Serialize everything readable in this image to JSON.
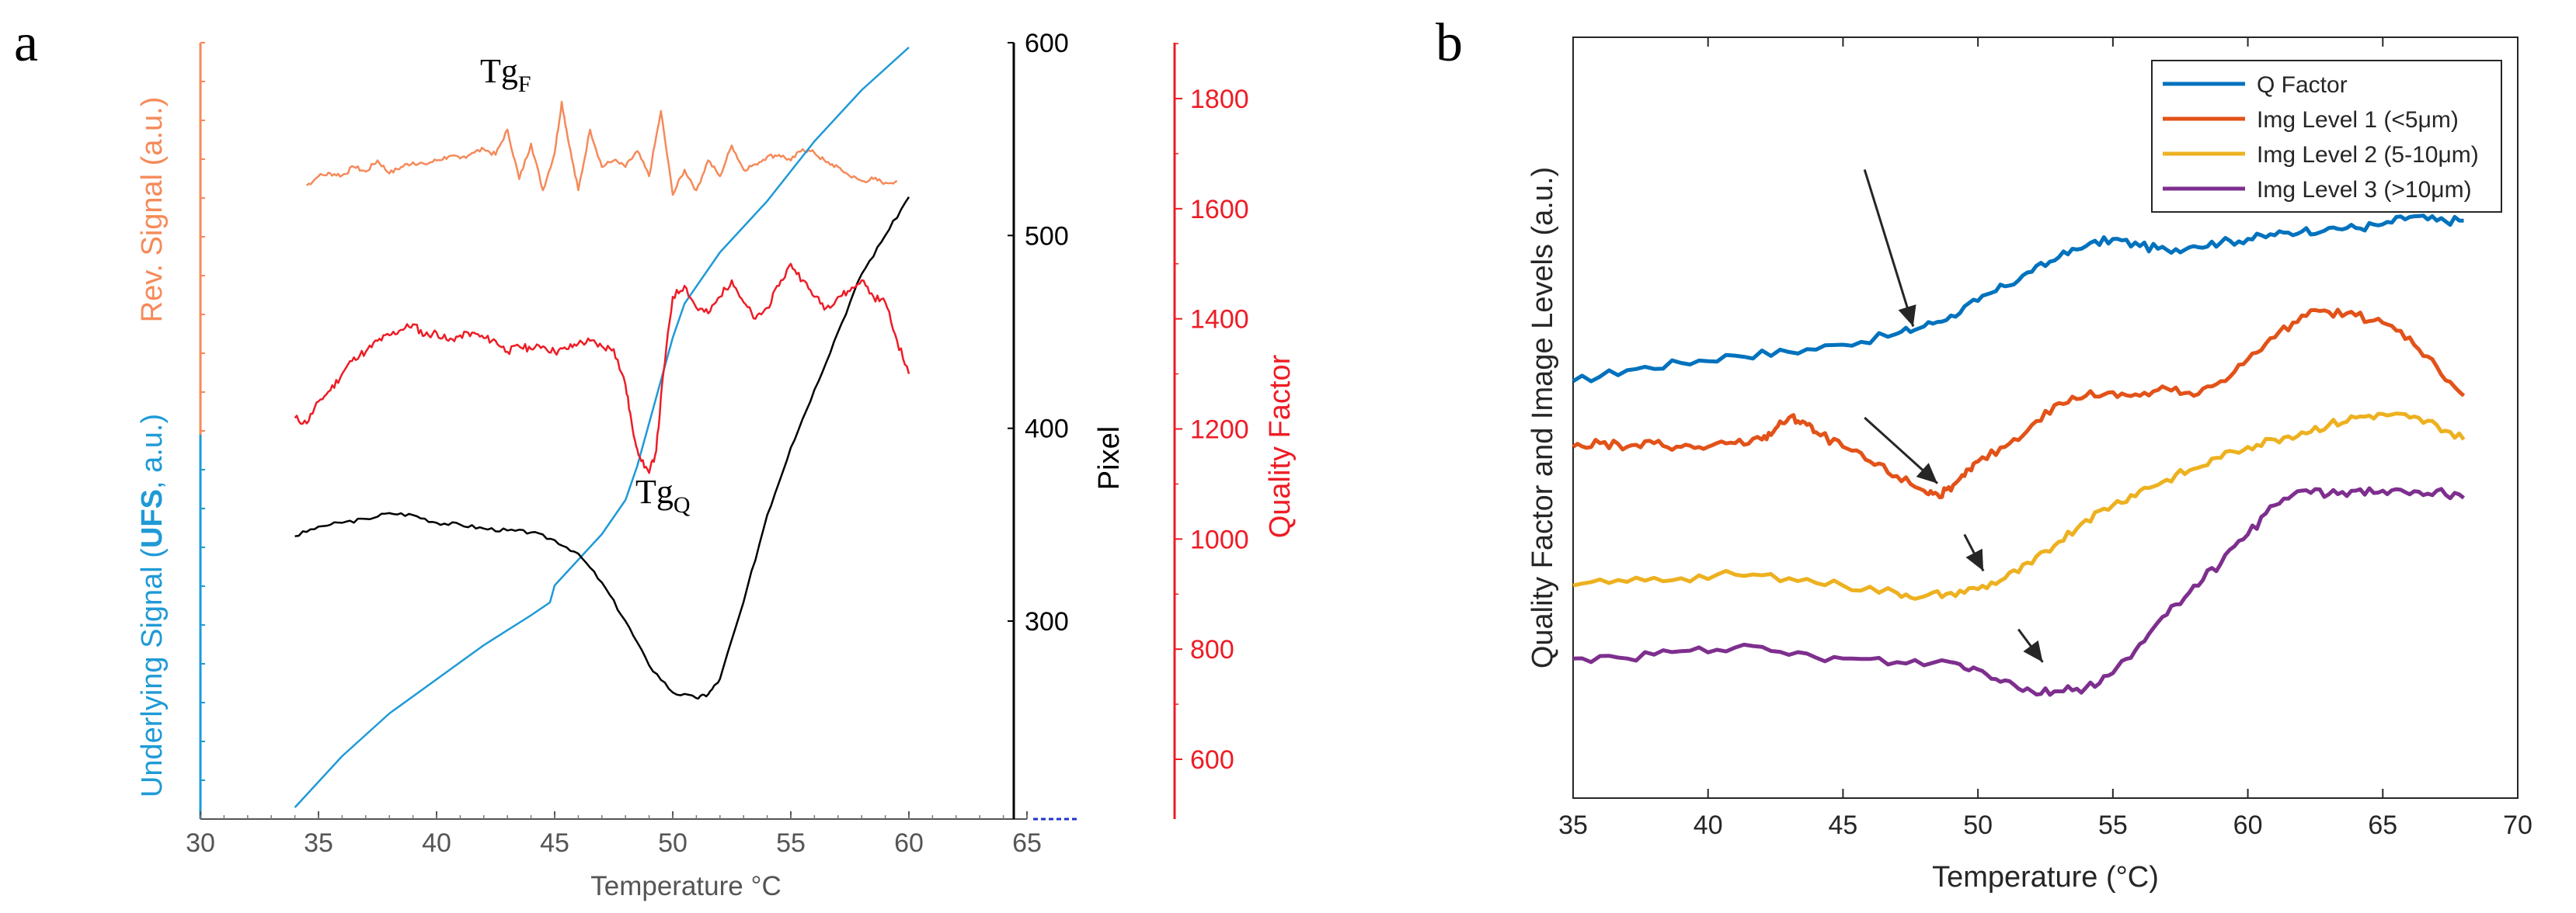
{
  "panels": [
    {
      "label": "a",
      "xlabel": "Temperature °C",
      "xlim": [
        30,
        65
      ],
      "xticks": [
        "30",
        "35",
        "40",
        "45",
        "50",
        "55",
        "60",
        "65"
      ],
      "ylabel_left_top": "Rev. Signal (a.u.)",
      "ylabel_left_bottom_prefix": "Underlying Signal (",
      "ylabel_left_bottom_bold": "UFS",
      "ylabel_left_bottom_suffix": ", a.u.)",
      "ylabel_pixel": "Pixel",
      "ylabel_quality": "Quality Factor",
      "pixel_ylim": [
        200,
        600
      ],
      "pixel_ticks": [
        "300",
        "400",
        "500",
        "600"
      ],
      "quality_ylim": [
        500,
        1900
      ],
      "quality_ticks": [
        "600",
        "800",
        "1000",
        "1200",
        "1400",
        "1600",
        "1800"
      ],
      "annotation_tgf": "Tg",
      "annotation_tgf_sub": "F",
      "annotation_tgq": "Tg",
      "annotation_tgq_sub": "Q"
    },
    {
      "label": "b",
      "xlabel": "Temperature (°C)",
      "xlim": [
        35,
        70
      ],
      "xticks": [
        "35",
        "40",
        "45",
        "50",
        "55",
        "60",
        "65",
        "70"
      ],
      "ylabel": "Quality Factor and Image Levels (a.u.)"
    }
  ],
  "chart_data": [
    {
      "type": "line",
      "title": "",
      "xlabel": "Temperature °C",
      "series": [
        {
          "name": "Rev. Signal",
          "axis": "relative",
          "color": "#f58a5a",
          "x": [
            34.5,
            35,
            35.5,
            36,
            36.5,
            37,
            37.5,
            38,
            38.5,
            39,
            39.5,
            40,
            40.5,
            41,
            41.5,
            42,
            42.5,
            43,
            43.5,
            44,
            44.5,
            45,
            45.3,
            45.6,
            46,
            46.5,
            47,
            47.5,
            48,
            48.5,
            49,
            49.5,
            50,
            50.5,
            51,
            51.5,
            52,
            52.5,
            53,
            53.5,
            54,
            54.5,
            55,
            55.5,
            56,
            56.5,
            57,
            57.5,
            58,
            58.5,
            59,
            59.5
          ],
          "values": [
            0.35,
            0.45,
            0.48,
            0.46,
            0.55,
            0.5,
            0.62,
            0.48,
            0.55,
            0.6,
            0.58,
            0.62,
            0.66,
            0.64,
            0.7,
            0.74,
            0.68,
            0.95,
            0.42,
            0.8,
            0.3,
            0.7,
            1.25,
            0.8,
            0.3,
            0.95,
            0.55,
            0.62,
            0.55,
            0.72,
            0.45,
            1.15,
            0.25,
            0.52,
            0.3,
            0.62,
            0.45,
            0.78,
            0.52,
            0.58,
            0.66,
            0.68,
            0.62,
            0.74,
            0.7,
            0.6,
            0.55,
            0.45,
            0.4,
            0.42,
            0.38,
            0.4
          ]
        },
        {
          "name": "Underlying Signal (UFS)",
          "axis": "relative",
          "color": "#1f9ad6",
          "x": [
            34,
            36,
            38,
            40,
            42,
            44,
            44.8,
            45,
            46,
            47,
            48,
            48.5,
            49,
            49.5,
            50,
            50.5,
            52,
            54,
            56,
            58,
            60
          ],
          "values": [
            0.0,
            0.12,
            0.22,
            0.3,
            0.38,
            0.45,
            0.48,
            0.52,
            0.58,
            0.64,
            0.72,
            0.8,
            0.9,
            1.0,
            1.1,
            1.18,
            1.3,
            1.42,
            1.56,
            1.68,
            1.78
          ]
        },
        {
          "name": "Pixel",
          "axis": "Pixel",
          "color": "#000000",
          "x": [
            34,
            35,
            36,
            37,
            38,
            39,
            40,
            41,
            42,
            43,
            44,
            45,
            46,
            47,
            48,
            49,
            50,
            51,
            51.5,
            52,
            53,
            54,
            55,
            56,
            57,
            58,
            59,
            60
          ],
          "values": [
            344,
            349,
            351,
            353,
            356,
            355,
            351,
            350,
            348,
            347,
            346,
            342,
            335,
            320,
            300,
            277,
            263,
            260,
            262,
            270,
            310,
            355,
            390,
            420,
            450,
            480,
            500,
            520
          ]
        },
        {
          "name": "Quality Factor",
          "axis": "Quality Factor",
          "color": "#ee1c25",
          "x": [
            34,
            34.5,
            35,
            35.5,
            36,
            36.5,
            37,
            37.5,
            38,
            38.5,
            39,
            39.5,
            40,
            40.5,
            41,
            41.5,
            42,
            42.5,
            43,
            43.5,
            44,
            44.5,
            45,
            45.5,
            46,
            46.5,
            47,
            47.5,
            48,
            48.3,
            48.6,
            49,
            49.3,
            49.6,
            50,
            50.5,
            51,
            51.5,
            52,
            52.5,
            53,
            53.5,
            54,
            54.5,
            55,
            55.5,
            56,
            56.5,
            57,
            57.5,
            58,
            58.5,
            59,
            59.5,
            60
          ],
          "values": [
            1220,
            1210,
            1250,
            1270,
            1300,
            1330,
            1340,
            1360,
            1370,
            1380,
            1390,
            1370,
            1375,
            1360,
            1370,
            1375,
            1365,
            1360,
            1340,
            1350,
            1345,
            1350,
            1340,
            1345,
            1355,
            1360,
            1350,
            1345,
            1280,
            1200,
            1150,
            1120,
            1160,
            1300,
            1440,
            1460,
            1420,
            1410,
            1440,
            1470,
            1430,
            1400,
            1420,
            1460,
            1500,
            1470,
            1440,
            1420,
            1440,
            1450,
            1470,
            1440,
            1430,
            1360,
            1300
          ]
        }
      ]
    },
    {
      "type": "line",
      "title": "",
      "xlabel": "Temperature (°C)",
      "ylabel": "Quality Factor and Image Levels (a.u.)",
      "xlim": [
        35,
        70
      ],
      "ylim": [
        0,
        100
      ],
      "legend": "top-right",
      "series": [
        {
          "name": "Q Factor",
          "color": "#0072bd",
          "x": [
            35,
            37,
            39,
            41,
            43,
            45,
            47,
            48,
            49,
            50,
            51,
            52,
            53,
            54,
            55,
            56,
            57,
            58,
            59,
            60,
            61,
            62,
            63,
            64,
            65,
            66,
            67,
            68
          ],
          "values": [
            55,
            56.5,
            57.5,
            58.5,
            59,
            60,
            61.5,
            62.5,
            64,
            66,
            68,
            70,
            72,
            73.5,
            74.5,
            73.5,
            73,
            73.5,
            74,
            74.5,
            75,
            75.5,
            76,
            76,
            76.5,
            77.5,
            77,
            77
          ]
        },
        {
          "name": "Img Level 1 (<5μm)",
          "color": "#e25219",
          "x": [
            35,
            36,
            37,
            38,
            39,
            40,
            41,
            42,
            42.5,
            43,
            43.5,
            44,
            45,
            46,
            47,
            48,
            48.5,
            49,
            49.5,
            50,
            51,
            52,
            53,
            54,
            55,
            56,
            57,
            58,
            59,
            60,
            61,
            62,
            63,
            64,
            65,
            66,
            67,
            68
          ],
          "values": [
            46,
            46.5,
            46,
            46.5,
            46,
            46,
            46.5,
            47,
            48.5,
            50,
            49.5,
            48,
            46,
            44,
            42,
            40,
            39.5,
            40,
            42,
            44,
            46,
            49,
            52,
            53,
            53.5,
            53,
            54,
            53,
            55,
            58,
            61,
            64,
            64.5,
            64,
            63,
            61,
            57,
            53
          ]
        },
        {
          "name": "Img Level 2 (5-10μm)",
          "color": "#edb120",
          "x": [
            35,
            37,
            39,
            41,
            43,
            45,
            47,
            48,
            49,
            50,
            51,
            52,
            53,
            54,
            55,
            56,
            57,
            58,
            59,
            60,
            61,
            62,
            63,
            64,
            65,
            66,
            67,
            68
          ],
          "values": [
            27,
            27.5,
            28,
            28.5,
            28,
            27,
            26,
            25.5,
            26,
            26.5,
            28,
            30,
            33,
            36,
            38,
            40,
            41.5,
            43,
            44.5,
            46,
            47,
            48,
            49,
            50,
            50.5,
            50,
            49,
            47
          ]
        },
        {
          "name": "Img Level 3 (>10μm)",
          "color": "#7e2f8e",
          "x": [
            35,
            37,
            39,
            41,
            43,
            45,
            47,
            49,
            50,
            51,
            52,
            53,
            54,
            55,
            56,
            57,
            58,
            59,
            60,
            61,
            62,
            63,
            64,
            65,
            66,
            67,
            68
          ],
          "values": [
            17,
            17,
            18,
            18.5,
            17.5,
            17,
            16.5,
            16.5,
            15.5,
            14,
            12.5,
            12.5,
            13,
            15,
            19,
            23,
            27,
            30,
            34,
            38,
            40,
            39.5,
            40,
            40,
            39.5,
            40,
            39
          ]
        }
      ]
    }
  ]
}
